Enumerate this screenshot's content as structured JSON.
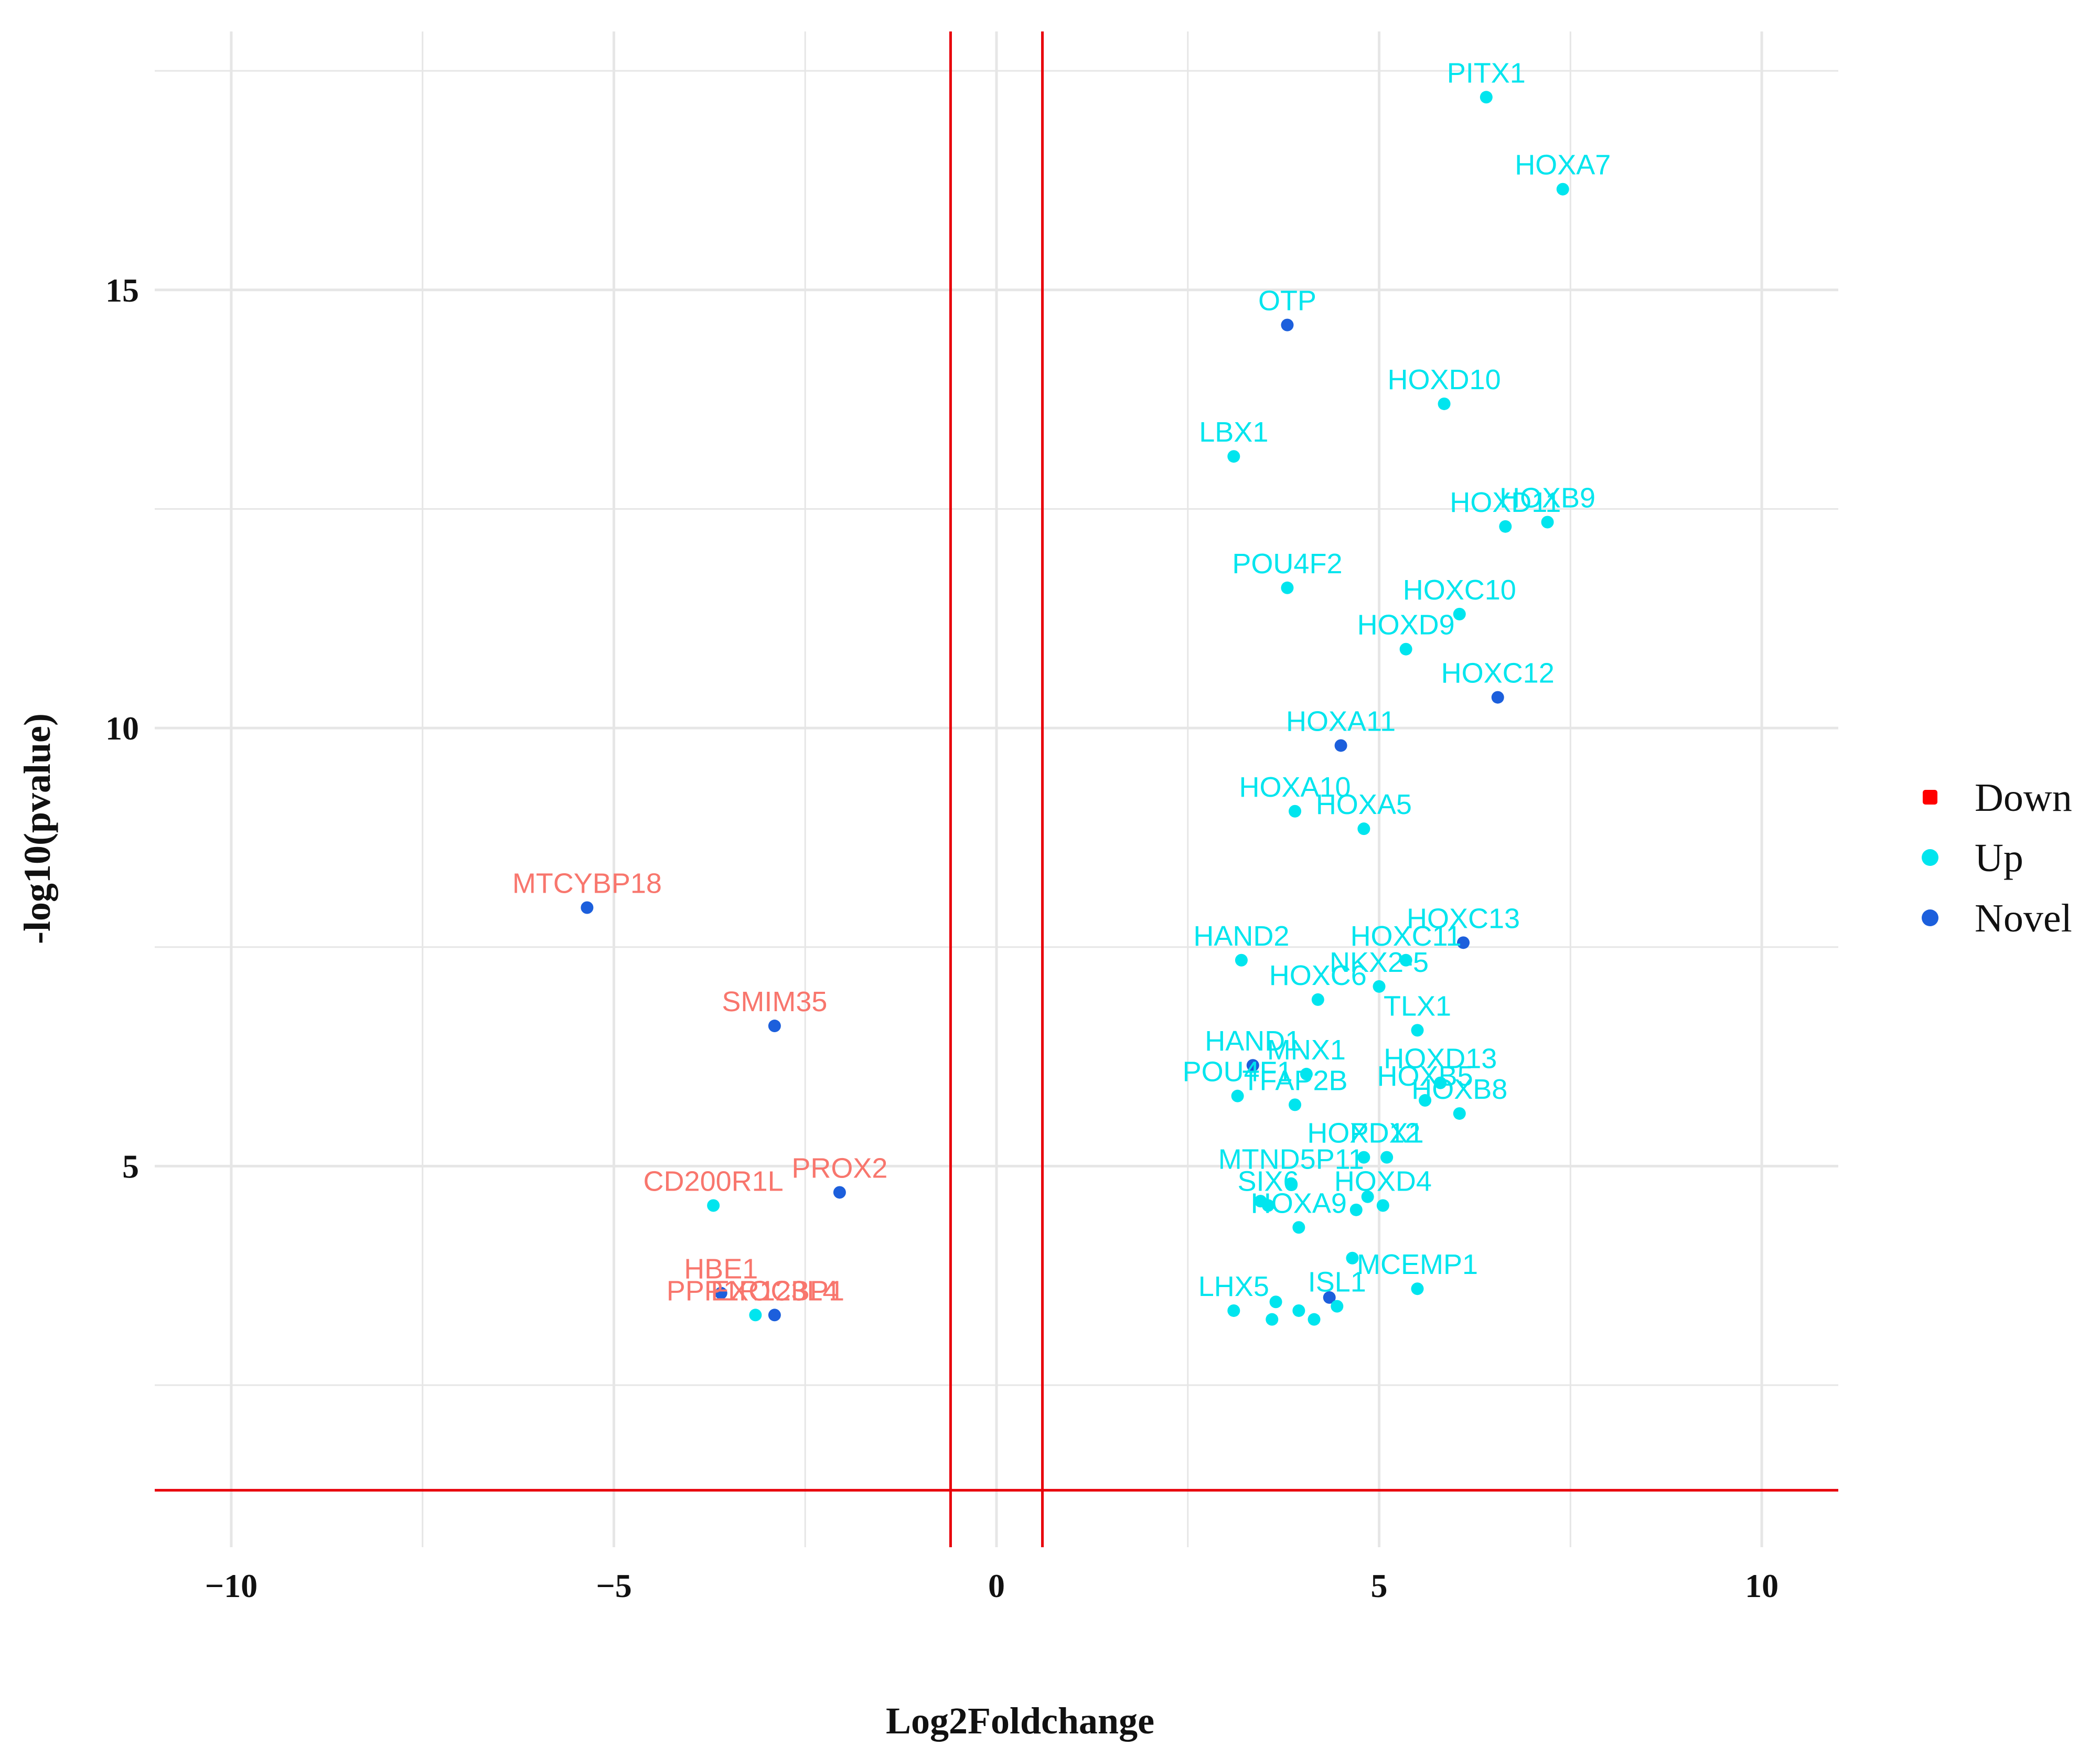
{
  "chart_data": {
    "type": "scatter",
    "title": "",
    "xlabel": "Log2Foldchange",
    "ylabel": "-log10(pvalue)",
    "xlim": [
      -11,
      11
    ],
    "ylim": [
      0.65,
      17.95
    ],
    "xticks": [
      -10,
      -5,
      0,
      5,
      10
    ],
    "xtick_labels": [
      "−10",
      "−5",
      "0",
      "5",
      "10"
    ],
    "yticks": [
      5,
      10,
      15
    ],
    "ytick_labels": [
      "5",
      "10",
      "15"
    ],
    "minor_xticks": [
      -7.5,
      -2.5,
      2.5,
      7.5
    ],
    "minor_yticks": [
      2.5,
      7.5,
      12.5,
      17.5
    ],
    "grid": true,
    "thresholds": {
      "vlines": [
        -0.6,
        0.6
      ],
      "hline": 1.3
    },
    "legend": {
      "position": "right",
      "entries": [
        {
          "name": "Down",
          "color": "#ff0000"
        },
        {
          "name": "Up",
          "color": "#00e5ee"
        },
        {
          "name": "Novel",
          "color": "#1c5fdc"
        }
      ]
    },
    "colors": {
      "Down": "#ff0000",
      "Up": "#00e5ee",
      "Novel": "#1c5fdc",
      "novel_label": "#f8766d",
      "threshold_line": "#e8000b",
      "grid": "#e6e6e6"
    },
    "points": [
      {
        "x": 6.4,
        "y": 17.2,
        "group": "Up",
        "label": "PITX1"
      },
      {
        "x": 7.4,
        "y": 16.15,
        "group": "Up",
        "label": "HOXA7"
      },
      {
        "x": 3.8,
        "y": 14.6,
        "group": "Novel",
        "label": "OTP"
      },
      {
        "x": 5.85,
        "y": 13.7,
        "group": "Up",
        "label": "HOXD10"
      },
      {
        "x": 3.1,
        "y": 13.1,
        "group": "Up",
        "label": "LBX1"
      },
      {
        "x": 7.2,
        "y": 12.35,
        "group": "Up",
        "label": "HOXB9"
      },
      {
        "x": 6.65,
        "y": 12.3,
        "group": "Up",
        "label": "HOXD11"
      },
      {
        "x": 3.8,
        "y": 11.6,
        "group": "Up",
        "label": "POU4F2"
      },
      {
        "x": 6.05,
        "y": 11.3,
        "group": "Up",
        "label": "HOXC10"
      },
      {
        "x": 5.35,
        "y": 10.9,
        "group": "Up",
        "label": "HOXD9"
      },
      {
        "x": 6.55,
        "y": 10.35,
        "group": "Novel",
        "label": "HOXC12"
      },
      {
        "x": 4.5,
        "y": 9.8,
        "group": "Novel",
        "label": "HOXA11"
      },
      {
        "x": 3.9,
        "y": 9.05,
        "group": "Up",
        "label": "HOXA10"
      },
      {
        "x": 4.8,
        "y": 8.85,
        "group": "Up",
        "label": "HOXA5"
      },
      {
        "x": 6.1,
        "y": 7.55,
        "group": "Novel",
        "label": "HOXC13"
      },
      {
        "x": 5.35,
        "y": 7.35,
        "group": "Up",
        "label": "HOXC11"
      },
      {
        "x": 3.2,
        "y": 7.35,
        "group": "Up",
        "label": "HAND2"
      },
      {
        "x": 5.0,
        "y": 7.05,
        "group": "Up",
        "label": "NKX2-5"
      },
      {
        "x": 4.2,
        "y": 6.9,
        "group": "Up",
        "label": "HOXC6"
      },
      {
        "x": 5.5,
        "y": 6.55,
        "group": "Up",
        "label": "TLX1"
      },
      {
        "x": 3.35,
        "y": 6.15,
        "group": "Novel",
        "label": "HAND1"
      },
      {
        "x": 4.05,
        "y": 6.05,
        "group": "Up",
        "label": "MNX1"
      },
      {
        "x": 5.8,
        "y": 5.95,
        "group": "Up",
        "label": "HOXD13"
      },
      {
        "x": 5.6,
        "y": 5.75,
        "group": "Up",
        "label": "HOXB5"
      },
      {
        "x": 3.15,
        "y": 5.8,
        "group": "Up",
        "label": "POU4F1"
      },
      {
        "x": 3.9,
        "y": 5.7,
        "group": "Up",
        "label": "TFAP2B"
      },
      {
        "x": 6.05,
        "y": 5.6,
        "group": "Up",
        "label": "HOXB8"
      },
      {
        "x": 4.8,
        "y": 5.1,
        "group": "Up",
        "label": "HOXD12"
      },
      {
        "x": 5.1,
        "y": 5.1,
        "group": "Up",
        "label": "PDX1"
      },
      {
        "x": 3.85,
        "y": 4.8,
        "group": "Up",
        "label": "MTND5P11"
      },
      {
        "x": 3.45,
        "y": 4.6,
        "group": "Up",
        "label": ""
      },
      {
        "x": 3.55,
        "y": 4.55,
        "group": "Up",
        "label": "SIX6"
      },
      {
        "x": 4.85,
        "y": 4.65,
        "group": "Up",
        "label": ""
      },
      {
        "x": 4.7,
        "y": 4.5,
        "group": "Up",
        "label": ""
      },
      {
        "x": 5.05,
        "y": 4.55,
        "group": "Up",
        "label": "HOXD4"
      },
      {
        "x": 3.95,
        "y": 4.3,
        "group": "Up",
        "label": "HOXA9"
      },
      {
        "x": 4.65,
        "y": 3.95,
        "group": "Up",
        "label": ""
      },
      {
        "x": 5.5,
        "y": 3.6,
        "group": "Up",
        "label": "MCEMP1"
      },
      {
        "x": 4.35,
        "y": 3.5,
        "group": "Novel",
        "label": ""
      },
      {
        "x": 3.65,
        "y": 3.45,
        "group": "Up",
        "label": ""
      },
      {
        "x": 4.45,
        "y": 3.4,
        "group": "Up",
        "label": "ISL1"
      },
      {
        "x": 3.1,
        "y": 3.35,
        "group": "Up",
        "label": "LHX5"
      },
      {
        "x": 3.95,
        "y": 3.35,
        "group": "Up",
        "label": ""
      },
      {
        "x": 3.6,
        "y": 3.25,
        "group": "Up",
        "label": ""
      },
      {
        "x": 4.15,
        "y": 3.25,
        "group": "Up",
        "label": ""
      },
      {
        "x": -5.35,
        "y": 7.95,
        "group": "Novel",
        "label": "MTCYBP18"
      },
      {
        "x": -2.9,
        "y": 6.6,
        "group": "Novel",
        "label": "SMIM35"
      },
      {
        "x": -2.05,
        "y": 4.7,
        "group": "Novel",
        "label": "PROX2"
      },
      {
        "x": -3.7,
        "y": 4.55,
        "group": "Up",
        "label": "CD200R1L"
      },
      {
        "x": -3.6,
        "y": 3.55,
        "group": "Novel",
        "label": "HBE1"
      },
      {
        "x": -2.9,
        "y": 3.3,
        "group": "Novel",
        "label": "EXOC3L4"
      },
      {
        "x": -3.15,
        "y": 3.3,
        "group": "Up",
        "label": "PPP1R12BP1"
      }
    ]
  }
}
